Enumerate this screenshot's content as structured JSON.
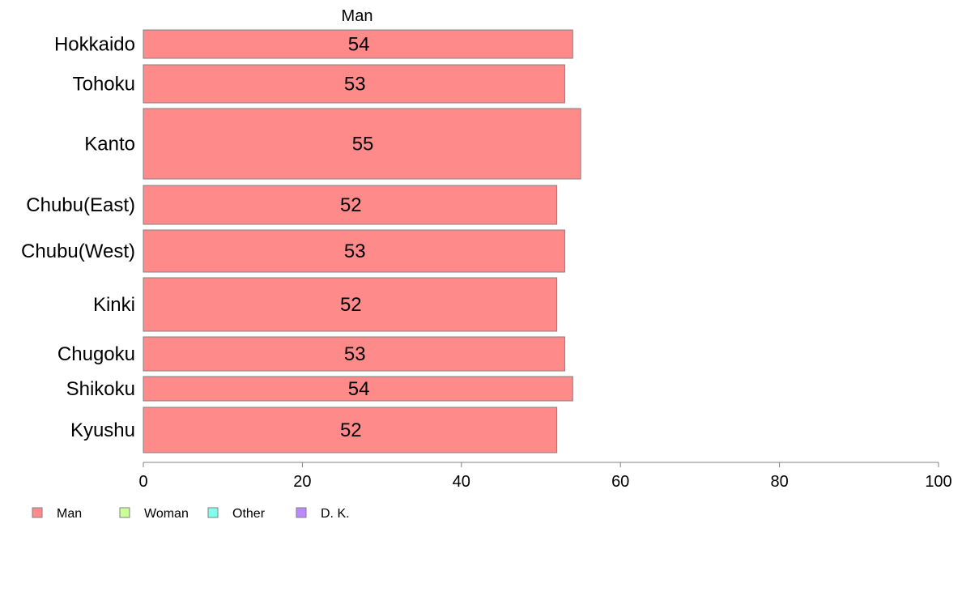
{
  "chart_data": {
    "type": "bar",
    "orientation": "horizontal",
    "stacked": true,
    "title": "Man",
    "categories": [
      "Hokkaido",
      "Tohoku",
      "Kanto",
      "Chubu(East)",
      "Chubu(West)",
      "Kinki",
      "Chugoku",
      "Shikoku",
      "Kyushu"
    ],
    "series": [
      {
        "name": "Man",
        "color": "#ff8a8a",
        "values": [
          54,
          53,
          55,
          52,
          53,
          52,
          53,
          54,
          52
        ]
      }
    ],
    "xlim": [
      0,
      100
    ],
    "xticks": [
      0,
      20,
      40,
      60,
      80,
      100
    ],
    "grid": false,
    "legend": {
      "placement": "bottom-left",
      "entries": [
        {
          "name": "Man",
          "color": "#ff8a8a"
        },
        {
          "name": "Woman",
          "color": "#ccff99"
        },
        {
          "name": "Other",
          "color": "#80ffee"
        },
        {
          "name": "D. K.",
          "color": "#bb88ff"
        }
      ]
    }
  }
}
